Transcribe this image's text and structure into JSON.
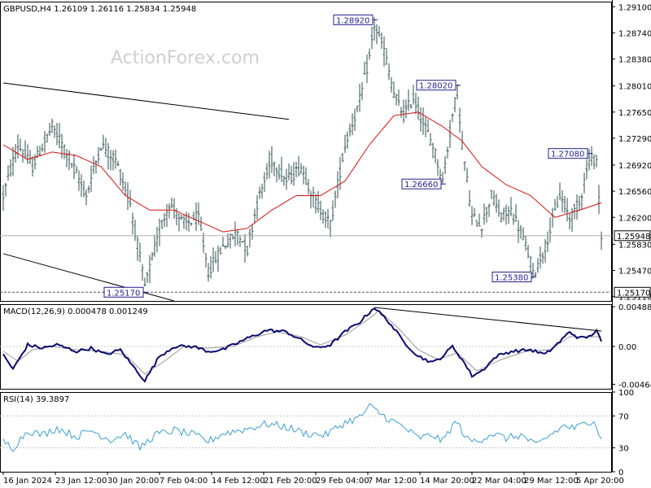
{
  "header": {
    "symbol_line": "GBPUSD,H4  1.26109 1.26116 1.25834 1.25948"
  },
  "watermark": "ActionForex.com",
  "colors": {
    "bars": "#2f4f4f",
    "ma": "#dd1111",
    "macd": "#0a0a6e",
    "signal": "#9a9a9a",
    "rsi": "#3aa0d0",
    "label_text": "#1f1f8f",
    "grid": "#c8c8c8",
    "trend": "#000000"
  },
  "chart_data": [
    {
      "type": "ohlc",
      "name": "price",
      "ylim": [
        1.2505,
        1.2917
      ],
      "y_ticks": [
        "1.29100",
        "1.28740",
        "1.28380",
        "1.28010",
        "1.27650",
        "1.27290",
        "1.26920",
        "1.26560",
        "1.26200",
        "1.25830",
        "1.25470",
        "1.25110"
      ],
      "y_tick_values": [
        1.291,
        1.2874,
        1.2838,
        1.2801,
        1.2765,
        1.2729,
        1.2692,
        1.2656,
        1.262,
        1.2583,
        1.2547,
        1.2511
      ],
      "x_labels": [
        "16 Jan 2024",
        "23 Jan 12:00",
        "30 Jan 20:00",
        "7 Feb 04:00",
        "14 Feb 12:00",
        "21 Feb 20:00",
        "29 Feb 04:00",
        "7 Mar 12:00",
        "14 Mar 20:00",
        "22 Mar 04:00",
        "29 Mar 12:00",
        "5 Apr 20:00"
      ],
      "current_price": "1.25948",
      "current_value": 1.25948,
      "support_label": "1.25170",
      "support_value": 1.2517,
      "annotations": [
        {
          "text": "1.28920",
          "value": 1.2892,
          "bar": 152
        },
        {
          "text": "1.28020",
          "value": 1.2802,
          "bar": 186
        },
        {
          "text": "1.26660",
          "value": 1.2666,
          "bar": 180
        },
        {
          "text": "1.27080",
          "value": 1.2708,
          "bar": 240
        },
        {
          "text": "1.25380",
          "value": 1.2538,
          "bar": 217
        },
        {
          "text": "1.25170",
          "value": 1.2517,
          "bar": 58
        }
      ],
      "keypoints": [
        [
          0,
          1.265
        ],
        [
          6,
          1.272
        ],
        [
          12,
          1.269
        ],
        [
          20,
          1.2745
        ],
        [
          26,
          1.271
        ],
        [
          34,
          1.265
        ],
        [
          40,
          1.272
        ],
        [
          46,
          1.27
        ],
        [
          52,
          1.264
        ],
        [
          58,
          1.2525
        ],
        [
          64,
          1.26
        ],
        [
          68,
          1.264
        ],
        [
          74,
          1.261
        ],
        [
          80,
          1.262
        ],
        [
          84,
          1.2545
        ],
        [
          90,
          1.258
        ],
        [
          96,
          1.26
        ],
        [
          100,
          1.2575
        ],
        [
          104,
          1.264
        ],
        [
          110,
          1.27
        ],
        [
          116,
          1.267
        ],
        [
          122,
          1.269
        ],
        [
          128,
          1.264
        ],
        [
          134,
          1.261
        ],
        [
          140,
          1.272
        ],
        [
          146,
          1.278
        ],
        [
          150,
          1.284
        ],
        [
          152,
          1.2885
        ],
        [
          156,
          1.285
        ],
        [
          160,
          1.279
        ],
        [
          164,
          1.276
        ],
        [
          168,
          1.2785
        ],
        [
          172,
          1.275
        ],
        [
          176,
          1.272
        ],
        [
          180,
          1.267
        ],
        [
          184,
          1.276
        ],
        [
          186,
          1.2795
        ],
        [
          188,
          1.272
        ],
        [
          192,
          1.262
        ],
        [
          196,
          1.261
        ],
        [
          200,
          1.265
        ],
        [
          204,
          1.262
        ],
        [
          208,
          1.263
        ],
        [
          212,
          1.26
        ],
        [
          216,
          1.256
        ],
        [
          217,
          1.254
        ],
        [
          222,
          1.258
        ],
        [
          228,
          1.265
        ],
        [
          232,
          1.262
        ],
        [
          236,
          1.264
        ],
        [
          240,
          1.27
        ],
        [
          243,
          1.27
        ],
        [
          245,
          1.2595
        ]
      ],
      "ma_keypoints": [
        [
          0,
          1.272
        ],
        [
          10,
          1.27
        ],
        [
          20,
          1.271
        ],
        [
          30,
          1.2705
        ],
        [
          40,
          1.269
        ],
        [
          50,
          1.265
        ],
        [
          60,
          1.263
        ],
        [
          70,
          1.263
        ],
        [
          80,
          1.2615
        ],
        [
          90,
          1.26
        ],
        [
          100,
          1.2605
        ],
        [
          110,
          1.263
        ],
        [
          120,
          1.265
        ],
        [
          130,
          1.265
        ],
        [
          140,
          1.267
        ],
        [
          150,
          1.272
        ],
        [
          160,
          1.276
        ],
        [
          170,
          1.2765
        ],
        [
          180,
          1.2745
        ],
        [
          188,
          1.2725
        ],
        [
          196,
          1.269
        ],
        [
          206,
          1.2665
        ],
        [
          216,
          1.265
        ],
        [
          226,
          1.262
        ],
        [
          236,
          1.263
        ],
        [
          245,
          1.264
        ]
      ],
      "trendlines": [
        {
          "from": [
            0,
            1.2805
          ],
          "to": [
            117,
            1.2755
          ]
        },
        {
          "from": [
            0,
            1.257
          ],
          "to": [
            70,
            1.2505
          ]
        }
      ]
    },
    {
      "type": "line",
      "name": "MACD",
      "label": "MACD(12,26,9) 0.000478 0.001249",
      "ylim": [
        -0.0052,
        0.0052
      ],
      "y_ticks": [
        "0.004884",
        "0.00",
        "-0.004645"
      ],
      "y_tick_values": [
        0.004884,
        0.0,
        -0.004645
      ],
      "keypoints": [
        [
          0,
          -0.001
        ],
        [
          4,
          -0.0028
        ],
        [
          10,
          0.0002
        ],
        [
          16,
          -0.0002
        ],
        [
          22,
          0.0002
        ],
        [
          30,
          -0.0006
        ],
        [
          36,
          -0.0002
        ],
        [
          42,
          -0.001
        ],
        [
          48,
          -0.0004
        ],
        [
          52,
          -0.002
        ],
        [
          58,
          -0.0042
        ],
        [
          64,
          -0.0012
        ],
        [
          70,
          0.0
        ],
        [
          78,
          0.0
        ],
        [
          84,
          -0.0006
        ],
        [
          90,
          -0.0004
        ],
        [
          100,
          0.001
        ],
        [
          108,
          0.002
        ],
        [
          116,
          0.0018
        ],
        [
          122,
          0.0008
        ],
        [
          128,
          -0.0002
        ],
        [
          134,
          0.0002
        ],
        [
          140,
          0.0018
        ],
        [
          146,
          0.003
        ],
        [
          152,
          0.0048
        ],
        [
          158,
          0.003
        ],
        [
          164,
          0.0006
        ],
        [
          170,
          -0.0012
        ],
        [
          176,
          -0.002
        ],
        [
          180,
          -0.0012
        ],
        [
          184,
          0.0
        ],
        [
          188,
          -0.0016
        ],
        [
          192,
          -0.0036
        ],
        [
          196,
          -0.003
        ],
        [
          202,
          -0.0012
        ],
        [
          208,
          -0.0006
        ],
        [
          216,
          -0.0004
        ],
        [
          222,
          -0.001
        ],
        [
          228,
          0.0006
        ],
        [
          232,
          0.0018
        ],
        [
          236,
          0.001
        ],
        [
          240,
          0.0012
        ],
        [
          243,
          0.002
        ],
        [
          245,
          0.0005
        ]
      ],
      "signal_keypoints": [
        [
          0,
          -0.0006
        ],
        [
          6,
          -0.0018
        ],
        [
          12,
          -0.0004
        ],
        [
          20,
          0.0
        ],
        [
          30,
          -0.0004
        ],
        [
          40,
          -0.0006
        ],
        [
          50,
          -0.001
        ],
        [
          58,
          -0.0034
        ],
        [
          66,
          -0.0018
        ],
        [
          74,
          0.0
        ],
        [
          84,
          -0.0002
        ],
        [
          94,
          0.0
        ],
        [
          104,
          0.0012
        ],
        [
          112,
          0.0018
        ],
        [
          122,
          0.0012
        ],
        [
          130,
          0.0002
        ],
        [
          140,
          0.0014
        ],
        [
          148,
          0.003
        ],
        [
          154,
          0.0044
        ],
        [
          162,
          0.0022
        ],
        [
          170,
          -0.0004
        ],
        [
          178,
          -0.0016
        ],
        [
          186,
          -0.0008
        ],
        [
          194,
          -0.003
        ],
        [
          204,
          -0.0016
        ],
        [
          214,
          -0.0006
        ],
        [
          224,
          -0.0004
        ],
        [
          232,
          0.0012
        ],
        [
          240,
          0.0012
        ],
        [
          245,
          0.0012
        ]
      ],
      "trendline": {
        "from": [
          152,
          0.0048
        ],
        "to": [
          245,
          0.0019
        ]
      }
    },
    {
      "type": "line",
      "name": "RSI",
      "label": "RSI(14) 39.3897",
      "ylim": [
        0,
        100
      ],
      "y_ticks": [
        "100",
        "70",
        "30",
        "0"
      ],
      "y_tick_values": [
        100,
        70,
        30,
        0
      ],
      "levels": [
        70,
        30
      ],
      "keypoints": [
        [
          0,
          38
        ],
        [
          4,
          30
        ],
        [
          10,
          52
        ],
        [
          16,
          46
        ],
        [
          22,
          55
        ],
        [
          30,
          44
        ],
        [
          36,
          52
        ],
        [
          44,
          40
        ],
        [
          50,
          48
        ],
        [
          56,
          30
        ],
        [
          62,
          46
        ],
        [
          70,
          52
        ],
        [
          78,
          46
        ],
        [
          84,
          38
        ],
        [
          90,
          48
        ],
        [
          100,
          54
        ],
        [
          108,
          60
        ],
        [
          116,
          56
        ],
        [
          124,
          48
        ],
        [
          132,
          46
        ],
        [
          140,
          62
        ],
        [
          146,
          68
        ],
        [
          150,
          82
        ],
        [
          154,
          74
        ],
        [
          158,
          66
        ],
        [
          164,
          56
        ],
        [
          170,
          42
        ],
        [
          176,
          46
        ],
        [
          180,
          38
        ],
        [
          184,
          58
        ],
        [
          186,
          62
        ],
        [
          190,
          40
        ],
        [
          194,
          38
        ],
        [
          200,
          48
        ],
        [
          206,
          42
        ],
        [
          212,
          46
        ],
        [
          216,
          38
        ],
        [
          218,
          32
        ],
        [
          224,
          46
        ],
        [
          230,
          58
        ],
        [
          234,
          54
        ],
        [
          238,
          60
        ],
        [
          242,
          66
        ],
        [
          245,
          39
        ]
      ]
    }
  ]
}
